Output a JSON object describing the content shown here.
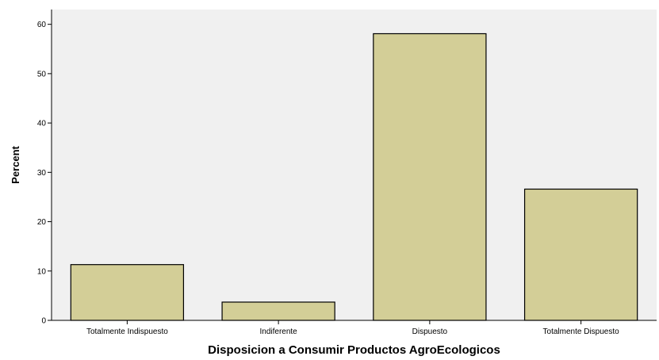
{
  "chart_data": {
    "type": "bar",
    "title": "",
    "xlabel": "Disposicion a Consumir Productos AgroEcologicos",
    "ylabel": "Percent",
    "categories": [
      "Totalmente Indispuesto",
      "Indiferente",
      "Dispuesto",
      "Totalmente Dispuesto"
    ],
    "values": [
      11.3,
      3.7,
      58.1,
      26.6
    ],
    "ylim": [
      0,
      63
    ],
    "yticks": [
      0,
      10,
      20,
      30,
      40,
      50,
      60
    ],
    "grid": false,
    "legend": "none",
    "colors": {
      "plot_background": "#f0f0f0",
      "bar_fill": "#d3ce97",
      "bar_stroke": "#000000"
    }
  }
}
